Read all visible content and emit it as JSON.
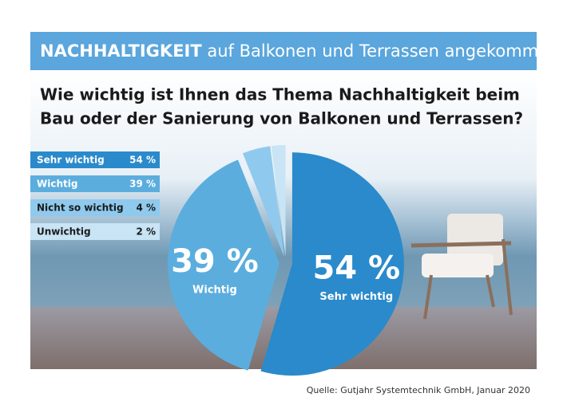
{
  "chart_data": {
    "type": "pie",
    "banner_bold": "NACHHALTIGKEIT",
    "banner_rest": "auf Balkonen und Terrassen angekommen",
    "title": [
      "Wie wichtig ist Ihnen das Thema Nachhaltigkeit beim",
      "Bau oder der Sanierung von Balkonen und Terrassen?"
    ],
    "categories": [
      "Sehr wichtig",
      "Wichtig",
      "Nicht so wichtig",
      "Unwichtig"
    ],
    "values": [
      54,
      39,
      4,
      2
    ],
    "value_labels": [
      "54 %",
      "39 %",
      "4 %",
      "2 %"
    ],
    "colors": [
      "#2a8acb",
      "#5badde",
      "#8fcaee",
      "#c8e4f5"
    ],
    "source": "Quelle: Gutjahr Systemtechnik GmbH, Januar 2020"
  }
}
